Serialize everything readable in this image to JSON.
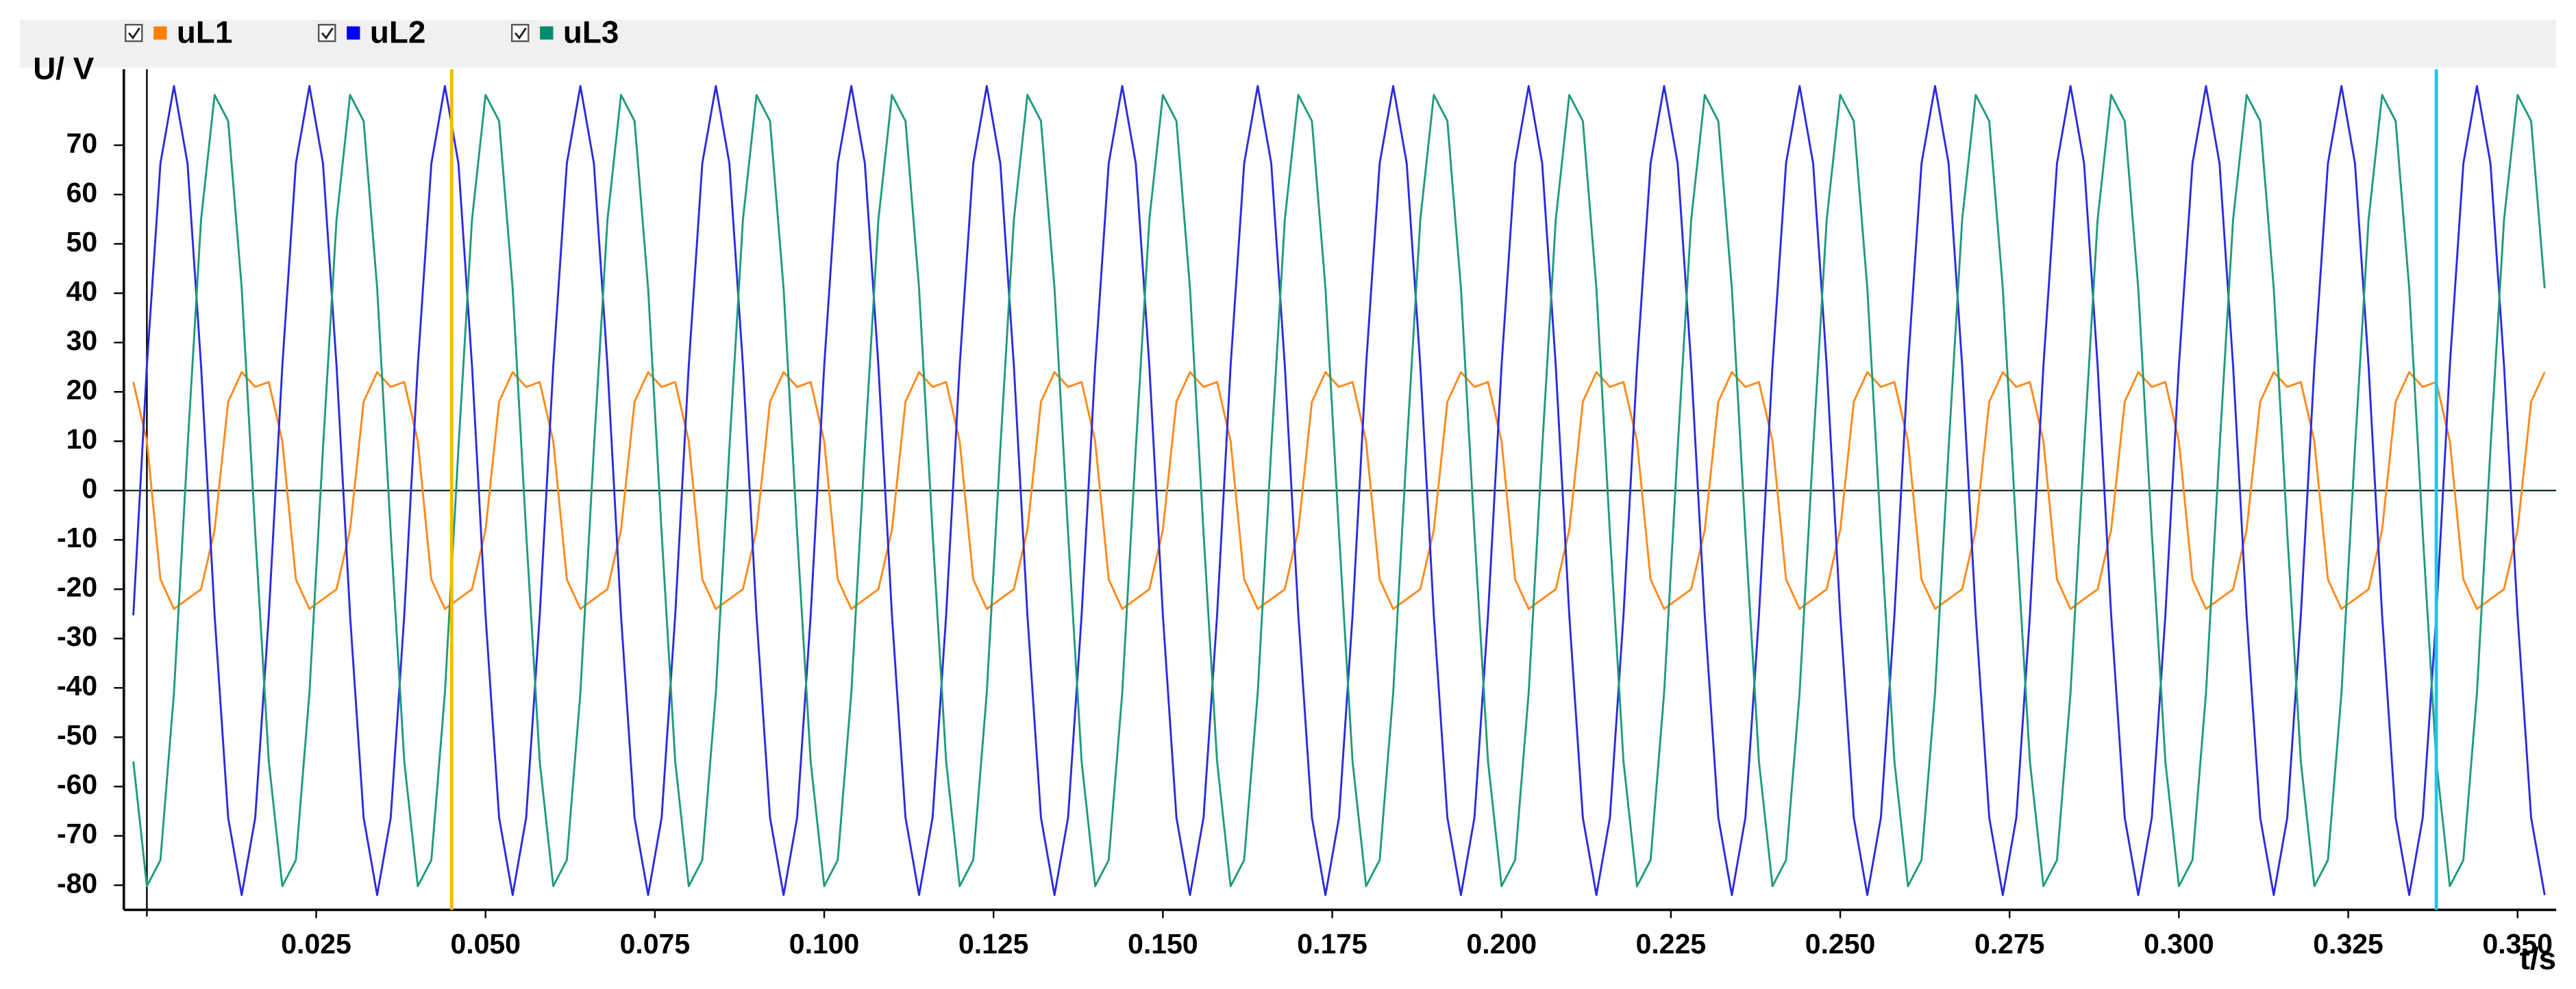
{
  "chart_data": {
    "type": "line",
    "y_label": "U/ V",
    "x_label": "t/s",
    "legend_position": "top-left",
    "grid": false,
    "xlim": [
      -0.0034,
      0.3557
    ],
    "ylim": [
      -85,
      85.4
    ],
    "yticks": [
      -80,
      -70,
      -60,
      -50,
      -40,
      -30,
      -20,
      -10,
      0,
      10,
      20,
      30,
      40,
      50,
      60,
      70
    ],
    "xticks": [
      0.025,
      {
        "value": 0.05,
        "label": "0.050"
      },
      0.075,
      {
        "value": 0.1,
        "label": "0.100"
      },
      0.125,
      {
        "value": 0.15,
        "label": "0.150"
      },
      0.175,
      {
        "value": 0.2,
        "label": "0.200"
      },
      0.225,
      {
        "value": 0.25,
        "label": "0.250"
      },
      0.275,
      {
        "value": 0.3,
        "label": "0.300"
      },
      0.325,
      {
        "value": 0.35,
        "label": "0.350"
      }
    ],
    "cursors": [
      {
        "x": 0.045,
        "color": "#f5b800"
      },
      {
        "x": 0.338,
        "color": "#22c4e6"
      }
    ],
    "x": [
      -0.002,
      0,
      0.002,
      0.004,
      0.006,
      0.008,
      0.01,
      0.012,
      0.014,
      0.016,
      0.018,
      0.02,
      0.022,
      0.024,
      0.026,
      0.028,
      0.03,
      0.032,
      0.034,
      0.036,
      0.038,
      0.04,
      0.042,
      0.044,
      0.046,
      0.048,
      0.05,
      0.052,
      0.054,
      0.056,
      0.058,
      0.06,
      0.062,
      0.064,
      0.066,
      0.068,
      0.07,
      0.072,
      0.074,
      0.076,
      0.078,
      0.08,
      0.082,
      0.084,
      0.086,
      0.088,
      0.09,
      0.092,
      0.094,
      0.096,
      0.098,
      0.1,
      0.102,
      0.104,
      0.106,
      0.108,
      0.11,
      0.112,
      0.114,
      0.116,
      0.118,
      0.12,
      0.122,
      0.124,
      0.126,
      0.128,
      0.13,
      0.132,
      0.134,
      0.136,
      0.138,
      0.14,
      0.142,
      0.144,
      0.146,
      0.148,
      0.15,
      0.152,
      0.154,
      0.156,
      0.158,
      0.16,
      0.162,
      0.164,
      0.166,
      0.168,
      0.17,
      0.172,
      0.174,
      0.176,
      0.178,
      0.18,
      0.182,
      0.184,
      0.186,
      0.188,
      0.19,
      0.192,
      0.194,
      0.196,
      0.198,
      0.2,
      0.202,
      0.204,
      0.206,
      0.208,
      0.21,
      0.212,
      0.214,
      0.216,
      0.218,
      0.22,
      0.222,
      0.224,
      0.226,
      0.228,
      0.23,
      0.232,
      0.234,
      0.236,
      0.238,
      0.24,
      0.242,
      0.244,
      0.246,
      0.248,
      0.25,
      0.252,
      0.254,
      0.256,
      0.258,
      0.26,
      0.262,
      0.264,
      0.266,
      0.268,
      0.27,
      0.272,
      0.274,
      0.276,
      0.278,
      0.28,
      0.282,
      0.284,
      0.286,
      0.288,
      0.29,
      0.292,
      0.294,
      0.296,
      0.298,
      0.3,
      0.302,
      0.304,
      0.306,
      0.308,
      0.31,
      0.312,
      0.314,
      0.316,
      0.318,
      0.32,
      0.322,
      0.324,
      0.326,
      0.328,
      0.33,
      0.332,
      0.334,
      0.336,
      0.338,
      0.34,
      0.342,
      0.344,
      0.346,
      0.348,
      0.35,
      0.352,
      0.354
    ],
    "series": [
      {
        "name": "uL1",
        "color": "#ff8a1c",
        "legend_color": "#ff7f00",
        "values": [
          22,
          10,
          -18,
          -24,
          -22,
          -20,
          -8,
          18,
          24,
          21,
          22,
          10,
          -18,
          -24,
          -22,
          -20,
          -8,
          18,
          24,
          21,
          22,
          10,
          -18,
          -24,
          -22,
          -20,
          -8,
          18,
          24,
          21,
          22,
          10,
          -18,
          -24,
          -22,
          -20,
          -8,
          18,
          24,
          21,
          22,
          10,
          -18,
          -24,
          -22,
          -20,
          -8,
          18,
          24,
          21,
          22,
          10,
          -18,
          -24,
          -22,
          -20,
          -8,
          18,
          24,
          21,
          22,
          10,
          -18,
          -24,
          -22,
          -20,
          -8,
          18,
          24,
          21,
          22,
          10,
          -18,
          -24,
          -22,
          -20,
          -8,
          18,
          24,
          21,
          22,
          10,
          -18,
          -24,
          -22,
          -20,
          -8,
          18,
          24,
          21,
          22,
          10,
          -18,
          -24,
          -22,
          -20,
          -8,
          18,
          24,
          21,
          22,
          10,
          -18,
          -24,
          -22,
          -20,
          -8,
          18,
          24,
          21,
          22,
          10,
          -18,
          -24,
          -22,
          -20,
          -8,
          18,
          24,
          21,
          22,
          10,
          -18,
          -24,
          -22,
          -20,
          -8,
          18,
          24,
          21,
          22,
          10,
          -18,
          -24,
          -22,
          -20,
          -8,
          18,
          24,
          21,
          22,
          10,
          -18,
          -24,
          -22,
          -20,
          -8,
          18,
          24,
          21,
          22,
          10,
          -18,
          -24,
          -22,
          -20,
          -8,
          18,
          24,
          21,
          22,
          10,
          -18,
          -24,
          -22,
          -20,
          -8,
          18,
          24,
          21,
          22,
          10,
          -18,
          -24,
          -22,
          -20,
          -8,
          18,
          24
        ]
      },
      {
        "name": "uL2",
        "color": "#2a2ae0",
        "legend_color": "#0000ff",
        "values": [
          -25.3,
          25.3,
          66.3,
          82,
          66.3,
          25.3,
          -25.3,
          -66.3,
          -82,
          -66.3,
          -25.3,
          25.3,
          66.3,
          82,
          66.3,
          25.3,
          -25.3,
          -66.3,
          -82,
          -66.3,
          -25.3,
          25.3,
          66.3,
          82,
          66.3,
          25.3,
          -25.3,
          -66.3,
          -82,
          -66.3,
          -25.3,
          25.3,
          66.3,
          82,
          66.3,
          25.3,
          -25.3,
          -66.3,
          -82,
          -66.3,
          -25.3,
          25.3,
          66.3,
          82,
          66.3,
          25.3,
          -25.3,
          -66.3,
          -82,
          -66.3,
          -25.3,
          25.3,
          66.3,
          82,
          66.3,
          25.3,
          -25.3,
          -66.3,
          -82,
          -66.3,
          -25.3,
          25.3,
          66.3,
          82,
          66.3,
          25.3,
          -25.3,
          -66.3,
          -82,
          -66.3,
          -25.3,
          25.3,
          66.3,
          82,
          66.3,
          25.3,
          -25.3,
          -66.3,
          -82,
          -66.3,
          -25.3,
          25.3,
          66.3,
          82,
          66.3,
          25.3,
          -25.3,
          -66.3,
          -82,
          -66.3,
          -25.3,
          25.3,
          66.3,
          82,
          66.3,
          25.3,
          -25.3,
          -66.3,
          -82,
          -66.3,
          -25.3,
          25.3,
          66.3,
          82,
          66.3,
          25.3,
          -25.3,
          -66.3,
          -82,
          -66.3,
          -25.3,
          25.3,
          66.3,
          82,
          66.3,
          25.3,
          -25.3,
          -66.3,
          -82,
          -66.3,
          -25.3,
          25.3,
          66.3,
          82,
          66.3,
          25.3,
          -25.3,
          -66.3,
          -82,
          -66.3,
          -25.3,
          25.3,
          66.3,
          82,
          66.3,
          25.3,
          -25.3,
          -66.3,
          -82,
          -66.3,
          -25.3,
          25.3,
          66.3,
          82,
          66.3,
          25.3,
          -25.3,
          -66.3,
          -82,
          -66.3,
          -25.3,
          25.3,
          66.3,
          82,
          66.3,
          25.3,
          -25.3,
          -66.3,
          -82,
          -66.3,
          -25.3,
          25.3,
          66.3,
          82,
          66.3,
          25.3,
          -25.3,
          -66.3,
          -82,
          -66.3,
          -25.3,
          25.3,
          66.3,
          82,
          66.3,
          25.3,
          -25.3,
          -66.3,
          -82
        ]
      },
      {
        "name": "uL3",
        "color": "#1f9a7c",
        "legend_color": "#008c6e",
        "values": [
          -54.9,
          -80.2,
          -74.9,
          -41,
          8.6,
          54.9,
          80.2,
          74.9,
          41,
          -8.6,
          -54.9,
          -80.2,
          -74.9,
          -41,
          8.6,
          54.9,
          80.2,
          74.9,
          41,
          -8.6,
          -54.9,
          -80.2,
          -74.9,
          -41,
          8.6,
          54.9,
          80.2,
          74.9,
          41,
          -8.6,
          -54.9,
          -80.2,
          -74.9,
          -41,
          8.6,
          54.9,
          80.2,
          74.9,
          41,
          -8.6,
          -54.9,
          -80.2,
          -74.9,
          -41,
          8.6,
          54.9,
          80.2,
          74.9,
          41,
          -8.6,
          -54.9,
          -80.2,
          -74.9,
          -41,
          8.6,
          54.9,
          80.2,
          74.9,
          41,
          -8.6,
          -54.9,
          -80.2,
          -74.9,
          -41,
          8.6,
          54.9,
          80.2,
          74.9,
          41,
          -8.6,
          -54.9,
          -80.2,
          -74.9,
          -41,
          8.6,
          54.9,
          80.2,
          74.9,
          41,
          -8.6,
          -54.9,
          -80.2,
          -74.9,
          -41,
          8.6,
          54.9,
          80.2,
          74.9,
          41,
          -8.6,
          -54.9,
          -80.2,
          -74.9,
          -41,
          8.6,
          54.9,
          80.2,
          74.9,
          41,
          -8.6,
          -54.9,
          -80.2,
          -74.9,
          -41,
          8.6,
          54.9,
          80.2,
          74.9,
          41,
          -8.6,
          -54.9,
          -80.2,
          -74.9,
          -41,
          8.6,
          54.9,
          80.2,
          74.9,
          41,
          -8.6,
          -54.9,
          -80.2,
          -74.9,
          -41,
          8.6,
          54.9,
          80.2,
          74.9,
          41,
          -8.6,
          -54.9,
          -80.2,
          -74.9,
          -41,
          8.6,
          54.9,
          80.2,
          74.9,
          41,
          -8.6,
          -54.9,
          -80.2,
          -74.9,
          -41,
          8.6,
          54.9,
          80.2,
          74.9,
          41,
          -8.6,
          -54.9,
          -80.2,
          -74.9,
          -41,
          8.6,
          54.9,
          80.2,
          74.9,
          41,
          -8.6,
          -54.9,
          -80.2,
          -74.9,
          -41,
          8.6,
          54.9,
          80.2,
          74.9,
          41,
          -8.6,
          -54.9,
          -80.2,
          -74.9,
          -41,
          8.6,
          54.9,
          80.2,
          74.9,
          41
        ]
      }
    ]
  }
}
